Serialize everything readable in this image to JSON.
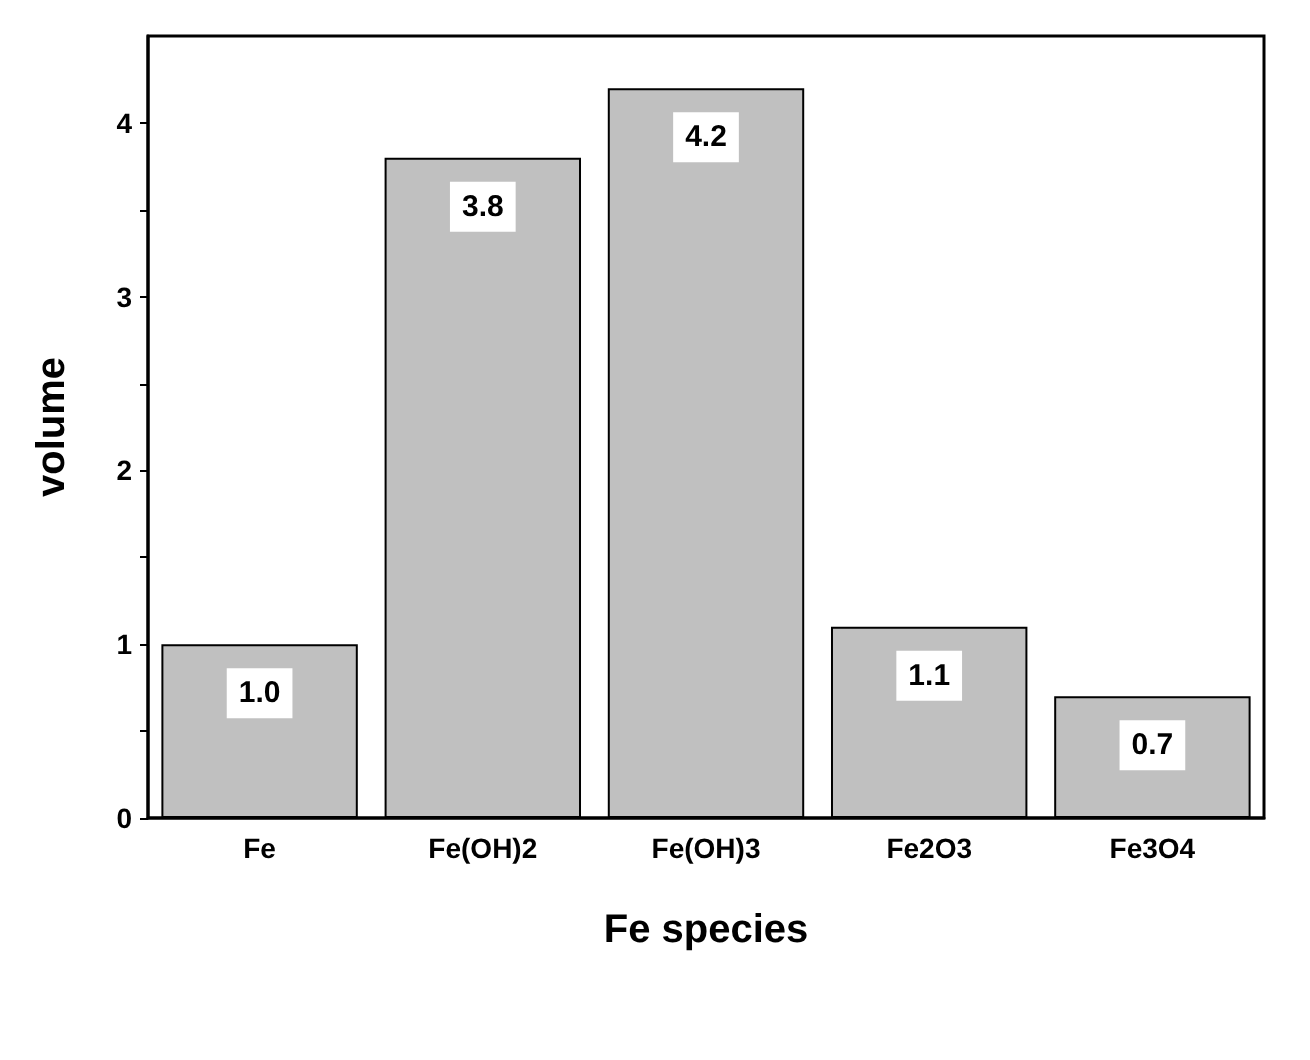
{
  "chart_data": {
    "type": "bar",
    "xlabel": "Fe species",
    "ylabel": "volume",
    "categories": [
      "Fe",
      "Fe(OH)2",
      "Fe(OH)3",
      "Fe2O3",
      "Fe3O4"
    ],
    "values": [
      1.0,
      3.8,
      4.2,
      1.1,
      0.7
    ],
    "value_labels": [
      "1.0",
      "3.8",
      "4.2",
      "1.1",
      "0.7"
    ],
    "color": "#c0c0c0",
    "ylim": [
      0,
      4.5
    ],
    "yticks": [
      0,
      {
        "value": 0.5,
        "label": null
      },
      1,
      {
        "value": 1.5,
        "label": null
      },
      2,
      {
        "value": 2.5,
        "label": null
      },
      3,
      {
        "value": 3.5,
        "label": null
      },
      4
    ],
    "grid": false
  }
}
